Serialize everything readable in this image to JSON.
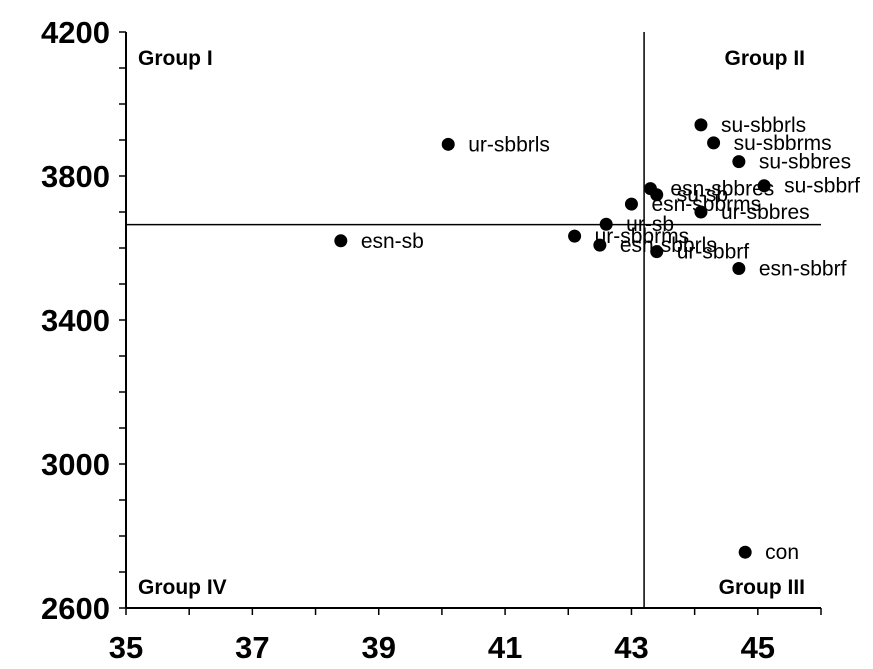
{
  "chart_data": {
    "type": "scatter",
    "title": "",
    "xlabel": "",
    "ylabel": "",
    "xlim": [
      35,
      46
    ],
    "ylim": [
      2600,
      4200
    ],
    "x_ticks": [
      "35",
      "37",
      "39",
      "41",
      "43",
      "45"
    ],
    "y_ticks": [
      "2600",
      "3000",
      "3400",
      "3800",
      "4200"
    ],
    "x_minor_step": 1,
    "y_minor_step": 100,
    "grid": false,
    "legend": "none",
    "reference_lines": {
      "x": 43.2,
      "y": 3665
    },
    "quadrants": [
      {
        "name": "Group I",
        "position": "top-left"
      },
      {
        "name": "Group II",
        "position": "top-right"
      },
      {
        "name": "Group III",
        "position": "bottom-right"
      },
      {
        "name": "Group IV",
        "position": "bottom-left"
      }
    ],
    "points": [
      {
        "label": "ur-sbbrls",
        "x": 40.1,
        "y": 3888
      },
      {
        "label": "esn-sb",
        "x": 38.4,
        "y": 3620
      },
      {
        "label": "su-sbbrls",
        "x": 44.1,
        "y": 3942
      },
      {
        "label": "su-sbbrms",
        "x": 44.3,
        "y": 3892
      },
      {
        "label": "su-sbbres",
        "x": 44.7,
        "y": 3840
      },
      {
        "label": "su-sbbrf",
        "x": 45.1,
        "y": 3773
      },
      {
        "label": "esn-sbbres",
        "x": 43.3,
        "y": 3765
      },
      {
        "label": "su-sb",
        "x": 43.4,
        "y": 3748
      },
      {
        "label": "esn-sbbrms",
        "x": 43.0,
        "y": 3722
      },
      {
        "label": "ur-sbbres",
        "x": 44.1,
        "y": 3700
      },
      {
        "label": "ur-sb",
        "x": 42.6,
        "y": 3666
      },
      {
        "label": "ur-sbbrms",
        "x": 42.1,
        "y": 3633
      },
      {
        "label": "esn-sbbrls",
        "x": 42.5,
        "y": 3608
      },
      {
        "label": "ur-sbbrf",
        "x": 43.4,
        "y": 3590
      },
      {
        "label": "esn-sbbrf",
        "x": 44.7,
        "y": 3543
      },
      {
        "label": "con",
        "x": 44.8,
        "y": 2755
      }
    ],
    "colors": {
      "points": "#000000",
      "axes": "#000000"
    }
  }
}
